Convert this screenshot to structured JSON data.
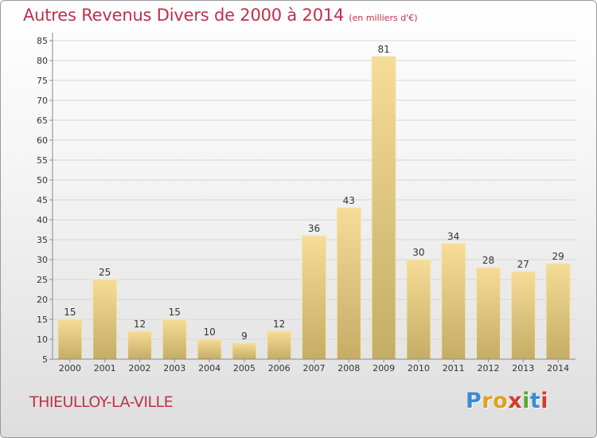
{
  "header": {
    "title": "Autres Revenus Divers de 2000 à 2014",
    "subtitle": "(en milliers d'€)"
  },
  "footer": {
    "place": "THIEULLOY-LA-VILLE",
    "logo_letters": [
      "P",
      "r",
      "o",
      "x",
      "i",
      "t",
      "i"
    ],
    "logo_colors": [
      "#3b8bd0",
      "#e0a020",
      "#e0a020",
      "#d43a2a",
      "#5aa838",
      "#3b8bd0",
      "#d43a2a"
    ]
  },
  "chart_data": {
    "type": "bar",
    "title": "Autres Revenus Divers de 2000 à 2014",
    "subtitle": "(en milliers d'€)",
    "categories": [
      "2000",
      "2001",
      "2002",
      "2003",
      "2004",
      "2005",
      "2006",
      "2007",
      "2008",
      "2009",
      "2010",
      "2011",
      "2012",
      "2013",
      "2014"
    ],
    "values": [
      15,
      25,
      12,
      15,
      10,
      9,
      12,
      36,
      43,
      81,
      30,
      34,
      28,
      27,
      29
    ],
    "data_labels": [
      "15",
      "25",
      "12",
      "15",
      "10",
      "9",
      "12",
      "36",
      "43",
      "81",
      "30",
      "34",
      "28",
      "27",
      "29"
    ],
    "ylim": [
      5,
      85
    ],
    "yticks": [
      5,
      10,
      15,
      20,
      25,
      30,
      35,
      40,
      45,
      50,
      55,
      60,
      65,
      70,
      75,
      80,
      85
    ],
    "ytick_labels": [
      "5",
      "10",
      "15",
      "20",
      "25",
      "30",
      "35",
      "40",
      "45",
      "50",
      "55",
      "60",
      "65",
      "70",
      "75",
      "80",
      "85"
    ],
    "grid": true,
    "legend": "none",
    "colors": {
      "bar_top": "#f6dc97",
      "bar_bottom": "#c5ad66",
      "bar_edge": "#f4e6b4",
      "grid": "#d5d5d5",
      "axis": "#8a8a8a",
      "title": "#c0304a"
    }
  }
}
